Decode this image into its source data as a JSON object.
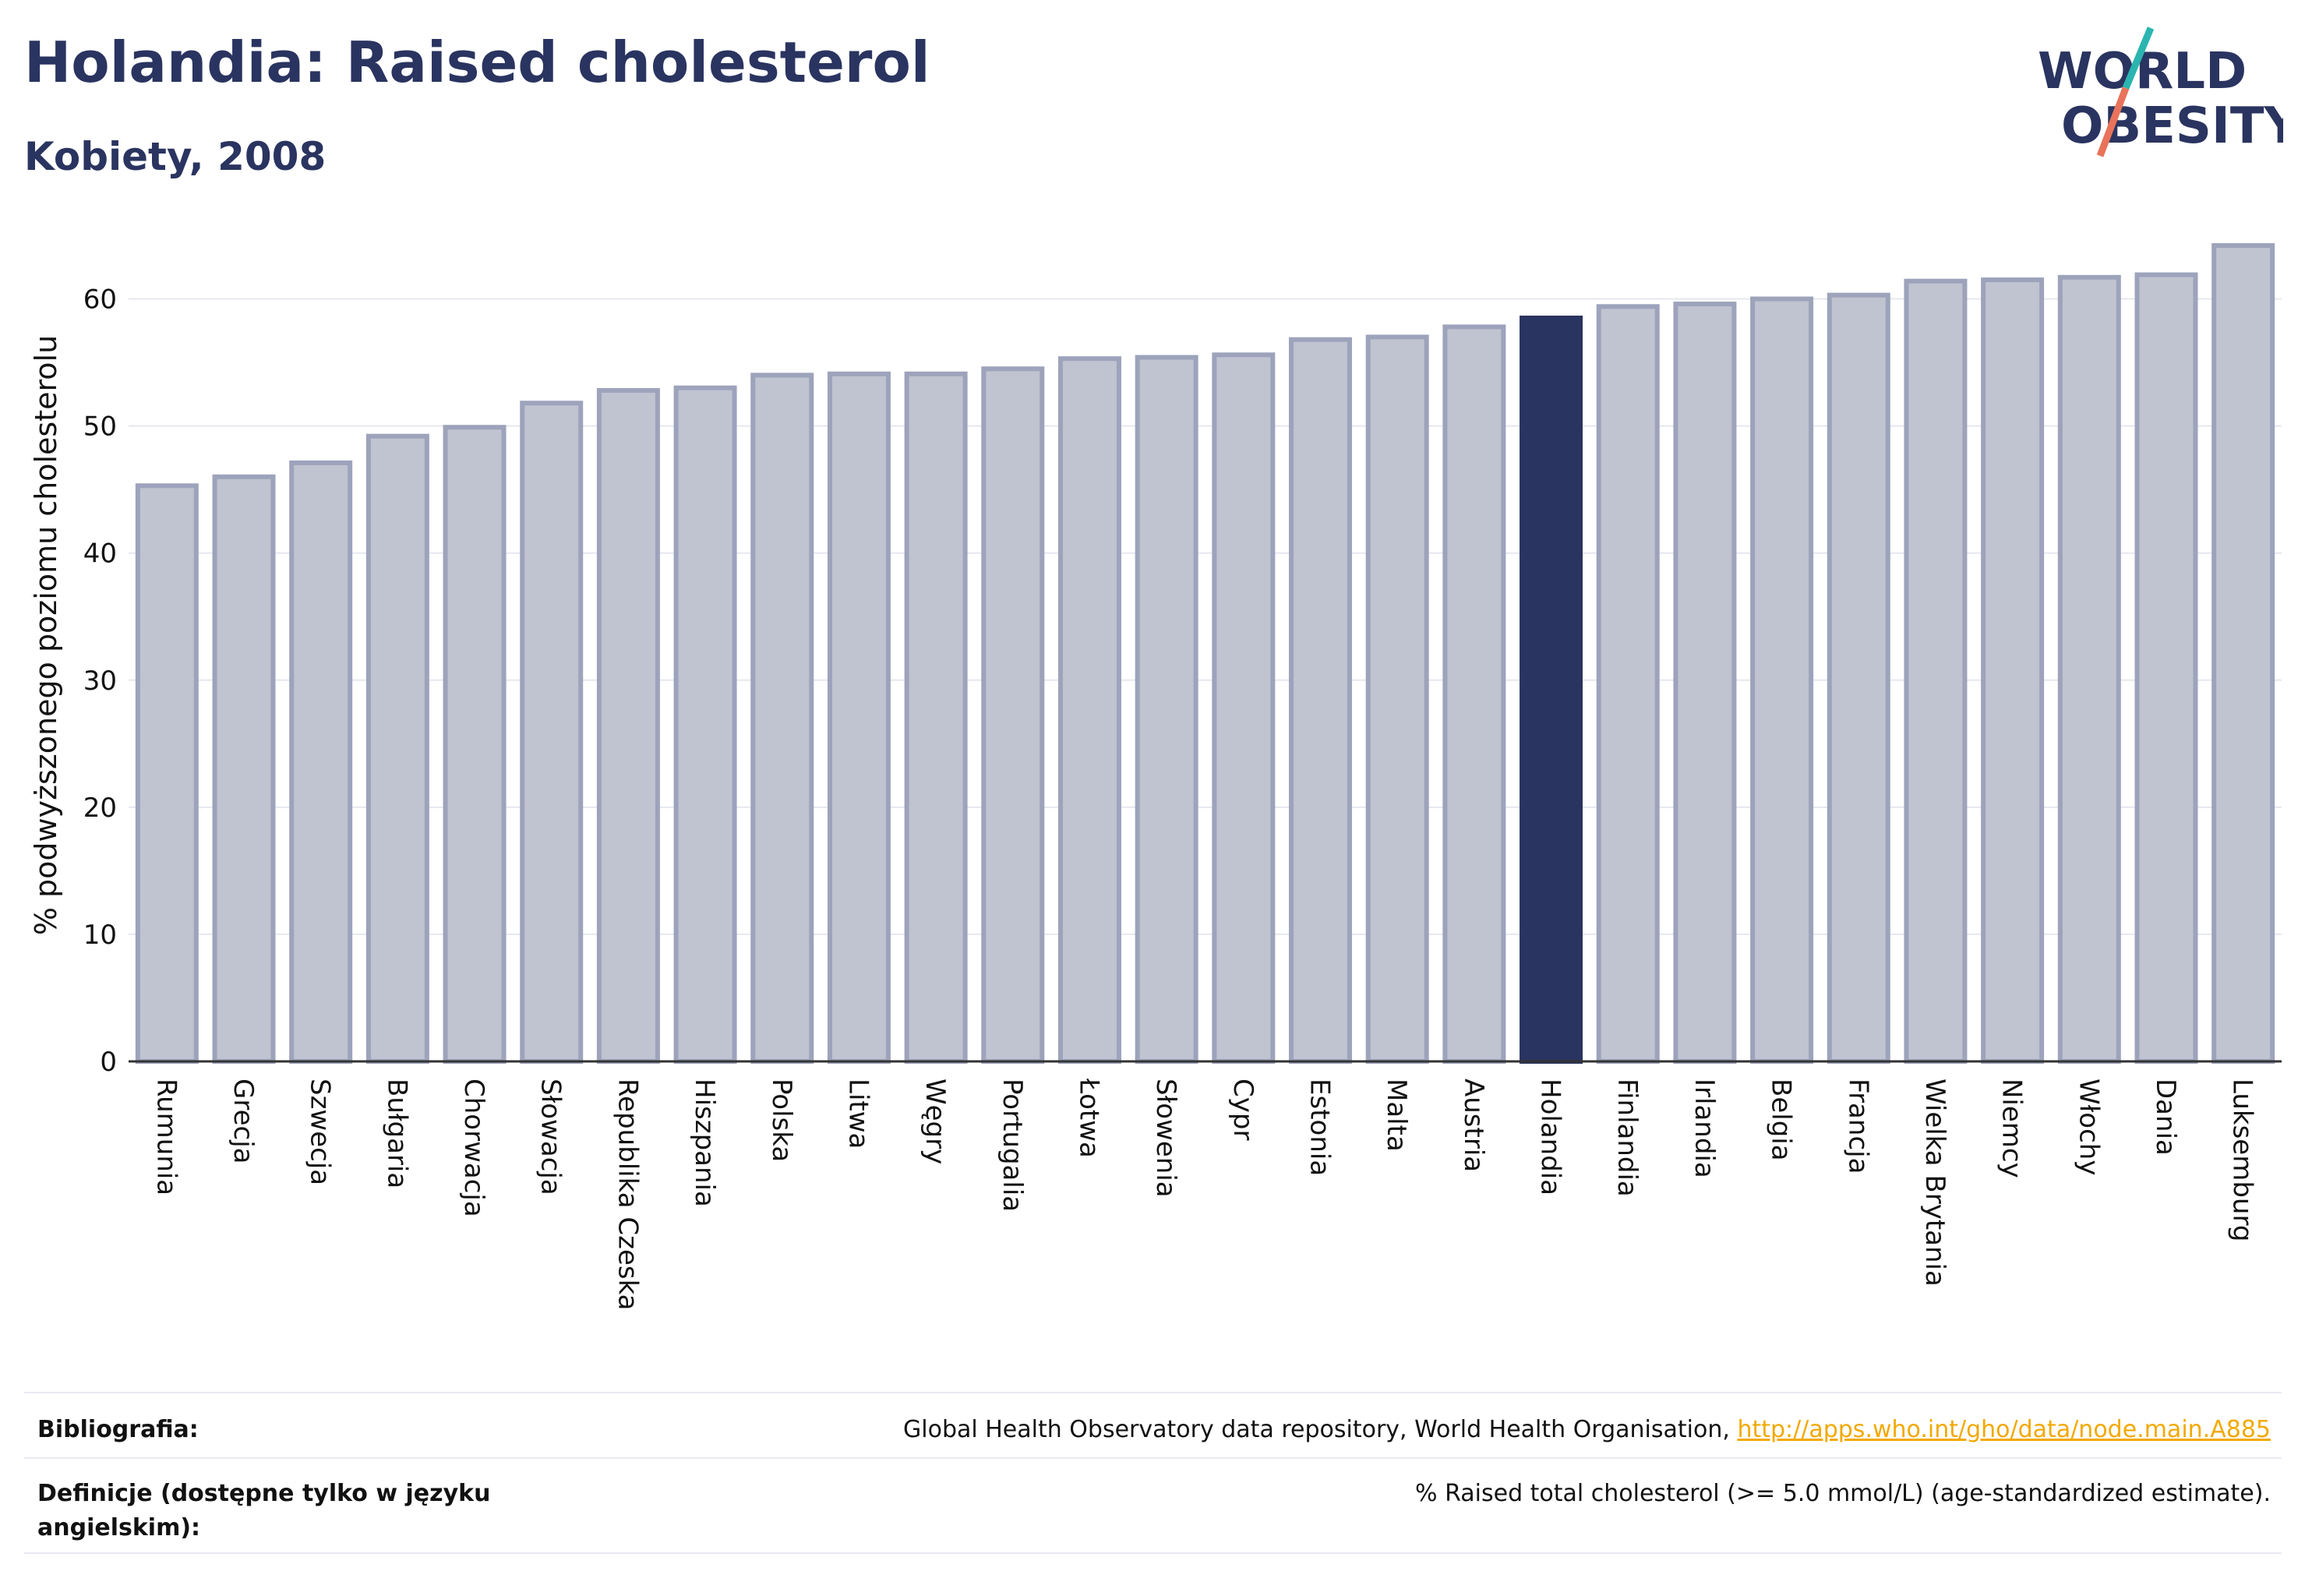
{
  "header": {
    "title": "Holandia: Raised cholesterol",
    "subtitle": "Kobiety, 2008"
  },
  "logo": {
    "line1": "WORLD",
    "line2": "OBESITY",
    "text_color": "#2a3460",
    "slash_colors": [
      "#2bb5b0",
      "#e8735a"
    ]
  },
  "chart_data": {
    "type": "bar",
    "ylabel": "% podwyższonego poziomu cholesterolu",
    "ylim": [
      0,
      65
    ],
    "yticks": [
      0,
      10,
      20,
      30,
      40,
      50,
      60
    ],
    "grid": true,
    "highlight": "Holandia",
    "colors": {
      "bar": "#c0c3d0",
      "bar_border": "#9da3bb",
      "highlight": "#2a3460"
    },
    "categories": [
      "Rumunia",
      "Grecja",
      "Szwecja",
      "Bułgaria",
      "Chorwacja",
      "Słowacja",
      "Republika Czeska",
      "Hiszpania",
      "Polska",
      "Litwa",
      "Węgry",
      "Portugalia",
      "Łotwa",
      "Słowenia",
      "Cypr",
      "Estonia",
      "Malta",
      "Austria",
      "Holandia",
      "Finlandia",
      "Irlandia",
      "Belgia",
      "Francja",
      "Wielka Brytania",
      "Niemcy",
      "Włochy",
      "Dania",
      "Luksemburg"
    ],
    "values": [
      45.3,
      46.0,
      47.1,
      49.2,
      49.9,
      51.8,
      52.8,
      53.0,
      54.0,
      54.1,
      54.1,
      54.5,
      55.3,
      55.4,
      55.6,
      56.8,
      57.0,
      57.8,
      58.5,
      59.4,
      59.6,
      60.0,
      60.3,
      61.4,
      61.5,
      61.7,
      61.9,
      64.2
    ]
  },
  "footer": {
    "bibliography_label": "Bibliografia:",
    "bibliography_text": "Global Health Observatory data repository, World Health Organisation, ",
    "bibliography_link": "http://apps.who.int/gho/data/node.main.A885",
    "definitions_label": "Definicje (dostępne tylko w języku angielskim):",
    "definitions_text": "% Raised total cholesterol (>= 5.0 mmol/L) (age-standardized estimate)."
  }
}
